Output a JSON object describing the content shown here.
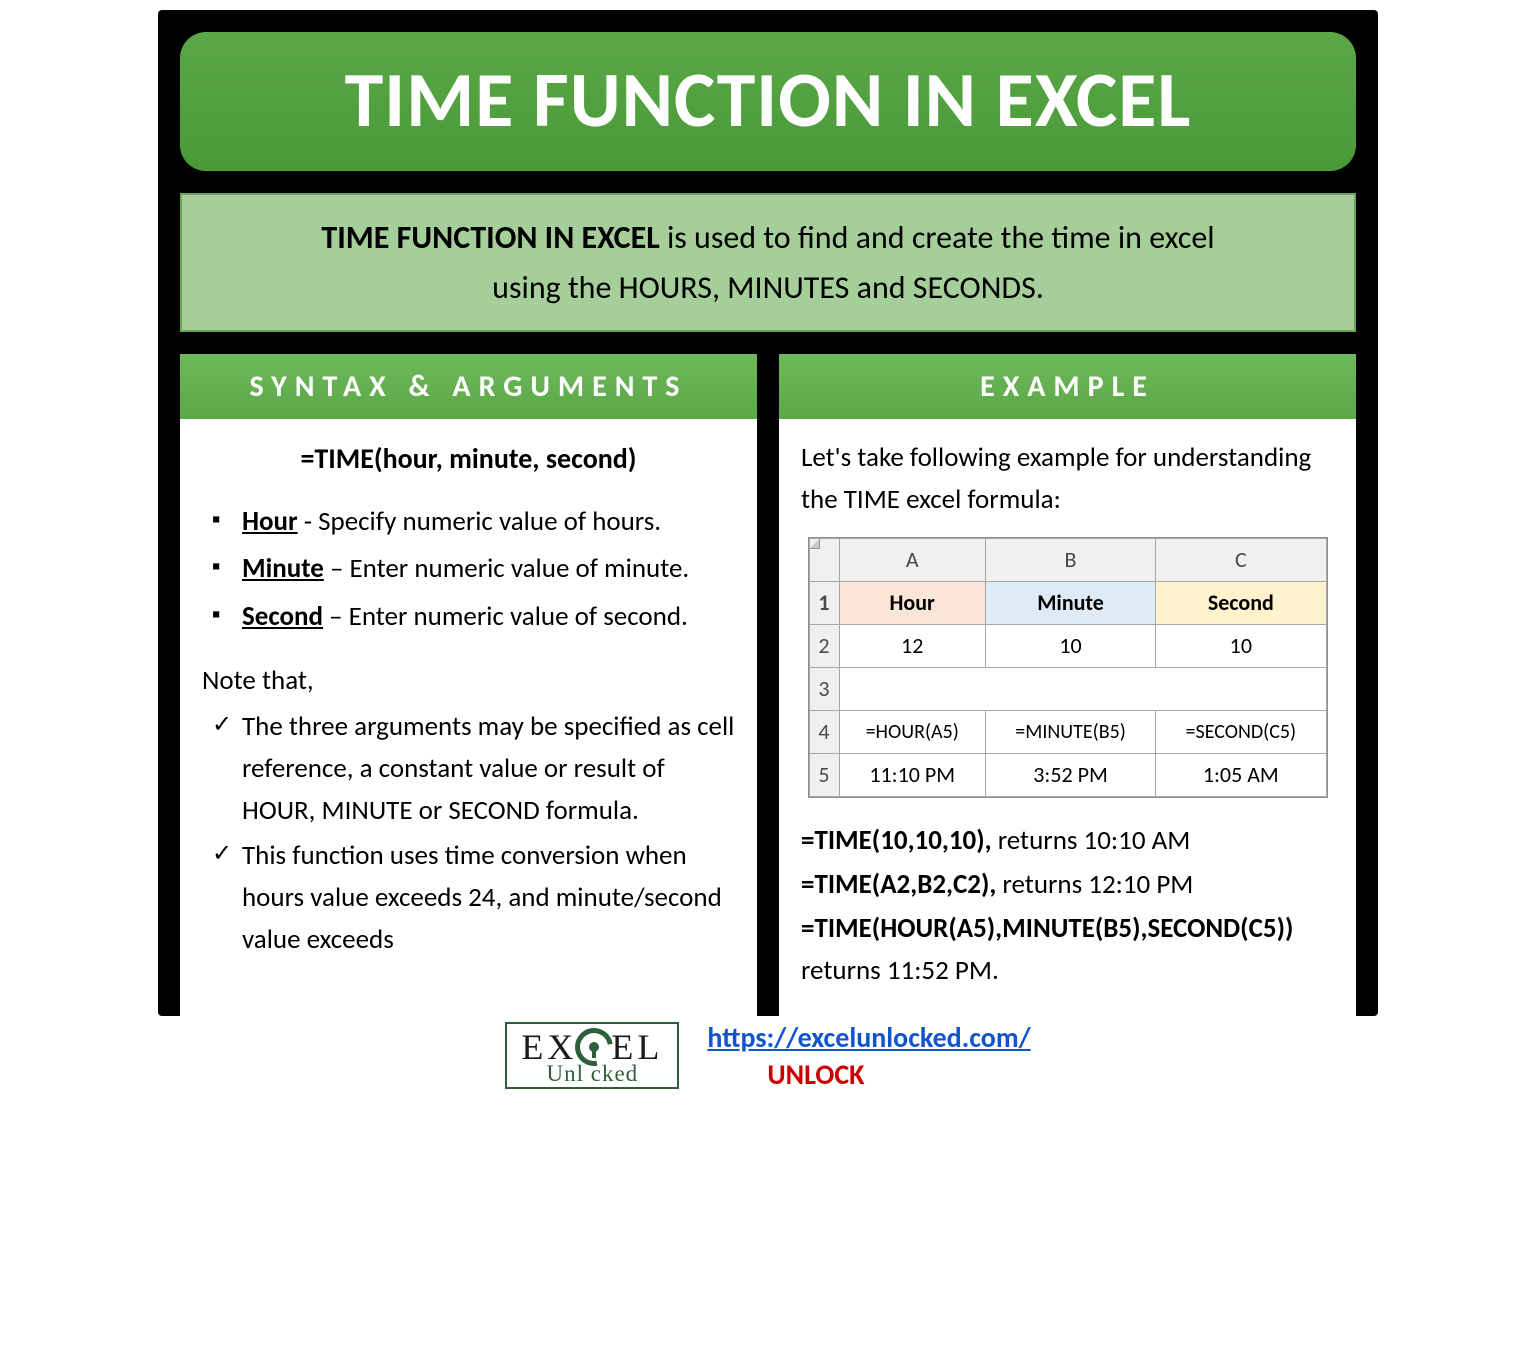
{
  "colors": {
    "header_green_top": "#5aa847",
    "header_green_bottom": "#4a9938",
    "intro_bg": "#a6ce9b",
    "intro_border": "#6aa25a",
    "section_green_top": "#6fb85b",
    "section_green_bottom": "#5aa847",
    "link_blue": "#1155cc",
    "unlock_red": "#cc0000",
    "logo_green": "#2d5f3a",
    "black": "#000000",
    "white": "#ffffff",
    "excel_hdr_a": "#fbe5d6",
    "excel_hdr_b": "#deebf7",
    "excel_hdr_c": "#fff2cc"
  },
  "title": "TIME FUNCTION IN EXCEL",
  "intro": {
    "bold": "TIME FUNCTION IN EXCEL",
    "rest_line1": " is used to find and create the time in excel",
    "line2": "using the HOURS, MINUTES and SECONDS."
  },
  "left": {
    "heading": "SYNTAX & ARGUMENTS",
    "syntax": "=TIME(hour, minute, second)",
    "args": [
      {
        "name": "Hour",
        "desc": " - Specify numeric value of hours."
      },
      {
        "name": "Minute",
        "desc": " – Enter numeric value of minute."
      },
      {
        "name": "Second",
        "desc": " – Enter numeric value of second."
      }
    ],
    "note_heading": "Note that,",
    "notes": [
      "The three arguments may be specified as cell reference, a constant value or result of HOUR, MINUTE or SECOND formula.",
      "This function uses time conversion when hours value exceeds 24, and minute/second value exceeds"
    ]
  },
  "right": {
    "heading": "EXAMPLE",
    "intro": "Let's take following example for understanding the TIME excel formula:",
    "table": {
      "col_letters": [
        "A",
        "B",
        "C"
      ],
      "row_nums": [
        "1",
        "2",
        "3",
        "4",
        "5"
      ],
      "headers": [
        "Hour",
        "Minute",
        "Second"
      ],
      "row2": [
        "12",
        "10",
        "10"
      ],
      "row4": [
        "=HOUR(A5)",
        "=MINUTE(B5)",
        "=SECOND(C5)"
      ],
      "row5": [
        "11:10 PM",
        "3:52 PM",
        "1:05 AM"
      ]
    },
    "examples": [
      {
        "bold": "=TIME(10,10,10),",
        "rest": " returns 10:10 AM"
      },
      {
        "bold": "=TIME(A2,B2,C2),",
        "rest": " returns 12:10 PM"
      },
      {
        "bold": "=TIME(HOUR(A5),MINUTE(B5),SECOND(C5))",
        "rest": " returns 11:52 PM."
      }
    ]
  },
  "footer": {
    "logo_top_left": "EX",
    "logo_top_right": "EL",
    "logo_bottom": "Unl   cked",
    "url": "https://excelunlocked.com/",
    "unlock": "UNLOCK"
  }
}
